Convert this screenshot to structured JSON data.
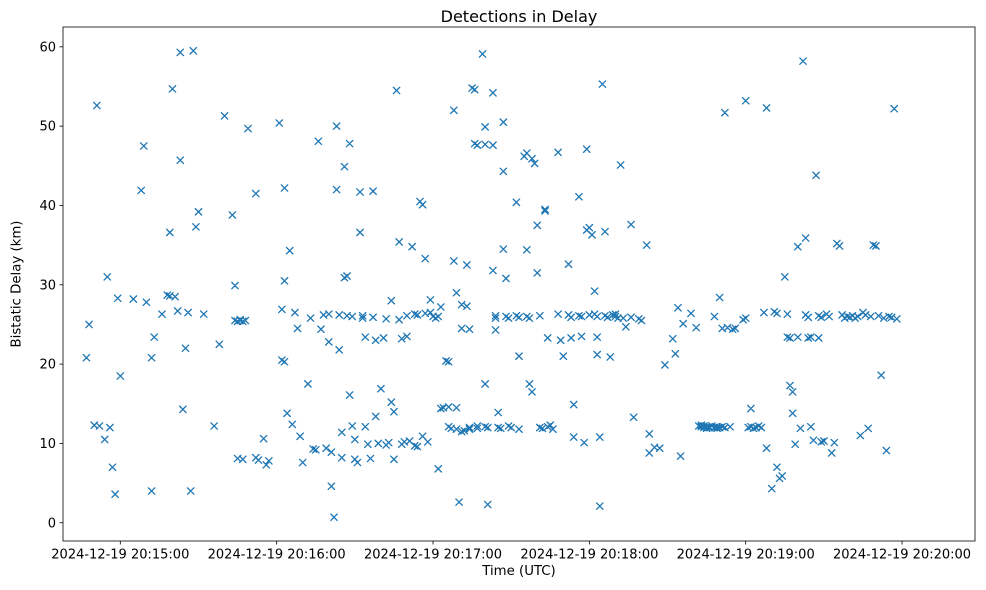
{
  "chart_data": {
    "type": "scatter",
    "title": "Detections in Delay",
    "xlabel": "Time (UTC)",
    "ylabel": "Bistatic Delay (km)",
    "marker": "x",
    "marker_color": "#1f77b4",
    "grid": false,
    "legend": "none",
    "x_unit": "seconds relative to 2024-12-19 20:15:00 UTC",
    "xlim": [
      -22,
      328
    ],
    "ylim": [
      -2.3,
      62.5
    ],
    "x_ticks": [
      {
        "value": 0,
        "label": "2024-12-19 20:15:00"
      },
      {
        "value": 60,
        "label": "2024-12-19 20:16:00"
      },
      {
        "value": 120,
        "label": "2024-12-19 20:17:00"
      },
      {
        "value": 180,
        "label": "2024-12-19 20:18:00"
      },
      {
        "value": 240,
        "label": "2024-12-19 20:19:00"
      },
      {
        "value": 300,
        "label": "2024-12-19 20:20:00"
      }
    ],
    "y_ticks": [
      {
        "value": 0,
        "label": "0"
      },
      {
        "value": 10,
        "label": "10"
      },
      {
        "value": 20,
        "label": "20"
      },
      {
        "value": 30,
        "label": "30"
      },
      {
        "value": 40,
        "label": "40"
      },
      {
        "value": 50,
        "label": "50"
      },
      {
        "value": 60,
        "label": "60"
      }
    ],
    "points": [
      [
        -13,
        20.8
      ],
      [
        -12,
        25.0
      ],
      [
        -10,
        12.3
      ],
      [
        -9,
        52.6
      ],
      [
        -8,
        12.2
      ],
      [
        -6,
        10.5
      ],
      [
        -5,
        31.0
      ],
      [
        -4,
        12.0
      ],
      [
        -3,
        7.0
      ],
      [
        -2,
        3.6
      ],
      [
        -1,
        28.3
      ],
      [
        0,
        18.5
      ],
      [
        5,
        28.2
      ],
      [
        8,
        41.9
      ],
      [
        9,
        47.5
      ],
      [
        10,
        27.8
      ],
      [
        12,
        20.8
      ],
      [
        12,
        4.0
      ],
      [
        13,
        23.4
      ],
      [
        16,
        26.3
      ],
      [
        18,
        28.7
      ],
      [
        19,
        28.6
      ],
      [
        19,
        36.6
      ],
      [
        20,
        54.7
      ],
      [
        21,
        28.5
      ],
      [
        22,
        26.7
      ],
      [
        23,
        45.7
      ],
      [
        23,
        59.3
      ],
      [
        24,
        14.3
      ],
      [
        25,
        22.0
      ],
      [
        26,
        26.5
      ],
      [
        27,
        4.0
      ],
      [
        28,
        59.5
      ],
      [
        29,
        37.3
      ],
      [
        30,
        39.2
      ],
      [
        32,
        26.3
      ],
      [
        36,
        12.2
      ],
      [
        38,
        22.5
      ],
      [
        40,
        51.3
      ],
      [
        43,
        38.8
      ],
      [
        44,
        29.9
      ],
      [
        44,
        25.5
      ],
      [
        45,
        25.4
      ],
      [
        45,
        8.1
      ],
      [
        46,
        25.6
      ],
      [
        46,
        25.5
      ],
      [
        47,
        25.4
      ],
      [
        47,
        8.0
      ],
      [
        48,
        25.5
      ],
      [
        49,
        49.7
      ],
      [
        52,
        41.5
      ],
      [
        52,
        8.2
      ],
      [
        53,
        7.9
      ],
      [
        55,
        10.6
      ],
      [
        56,
        7.3
      ],
      [
        57,
        7.8
      ],
      [
        61,
        50.4
      ],
      [
        62,
        26.9
      ],
      [
        62,
        20.5
      ],
      [
        63,
        42.2
      ],
      [
        63,
        30.5
      ],
      [
        63,
        20.3
      ],
      [
        64,
        13.8
      ],
      [
        65,
        34.3
      ],
      [
        66,
        12.4
      ],
      [
        67,
        26.5
      ],
      [
        68,
        24.5
      ],
      [
        69,
        10.9
      ],
      [
        70,
        7.6
      ],
      [
        72,
        17.5
      ],
      [
        73,
        25.8
      ],
      [
        74,
        9.3
      ],
      [
        75,
        9.2
      ],
      [
        76,
        48.1
      ],
      [
        77,
        24.4
      ],
      [
        78,
        26.2
      ],
      [
        79,
        9.4
      ],
      [
        80,
        26.3
      ],
      [
        80,
        22.8
      ],
      [
        81,
        8.9
      ],
      [
        81,
        4.6
      ],
      [
        82,
        0.7
      ],
      [
        83,
        50.0
      ],
      [
        83,
        42.0
      ],
      [
        84,
        26.2
      ],
      [
        84,
        21.8
      ],
      [
        85,
        11.4
      ],
      [
        85,
        8.2
      ],
      [
        86,
        44.9
      ],
      [
        86,
        30.9
      ],
      [
        87,
        31.1
      ],
      [
        87,
        26.1
      ],
      [
        88,
        47.8
      ],
      [
        88,
        16.1
      ],
      [
        89,
        26.0
      ],
      [
        89,
        12.2
      ],
      [
        90,
        10.5
      ],
      [
        90,
        8.0
      ],
      [
        91,
        7.6
      ],
      [
        92,
        41.7
      ],
      [
        92,
        36.6
      ],
      [
        93,
        26.1
      ],
      [
        93,
        25.8
      ],
      [
        94,
        23.4
      ],
      [
        94,
        12.1
      ],
      [
        95,
        9.9
      ],
      [
        96,
        8.1
      ],
      [
        97,
        41.8
      ],
      [
        97,
        25.9
      ],
      [
        98,
        23.0
      ],
      [
        98,
        13.4
      ],
      [
        99,
        10.0
      ],
      [
        100,
        16.9
      ],
      [
        101,
        23.3
      ],
      [
        102,
        25.7
      ],
      [
        102,
        9.8
      ],
      [
        103,
        10.1
      ],
      [
        104,
        28.0
      ],
      [
        104,
        15.2
      ],
      [
        105,
        14.0
      ],
      [
        105,
        8.0
      ],
      [
        106,
        54.5
      ],
      [
        107,
        35.4
      ],
      [
        107,
        25.6
      ],
      [
        108,
        23.2
      ],
      [
        108,
        9.9
      ],
      [
        109,
        10.2
      ],
      [
        110,
        26.1
      ],
      [
        110,
        23.5
      ],
      [
        111,
        10.3
      ],
      [
        112,
        34.8
      ],
      [
        113,
        26.3
      ],
      [
        113,
        9.7
      ],
      [
        114,
        26.2
      ],
      [
        114,
        9.6
      ],
      [
        115,
        40.5
      ],
      [
        116,
        40.1
      ],
      [
        116,
        10.9
      ],
      [
        117,
        33.3
      ],
      [
        117,
        26.4
      ],
      [
        118,
        10.2
      ],
      [
        119,
        26.5
      ],
      [
        119,
        28.1
      ],
      [
        120,
        26.0
      ],
      [
        121,
        25.8
      ],
      [
        122,
        6.8
      ],
      [
        122,
        26.0
      ],
      [
        123,
        27.2
      ],
      [
        123,
        14.4
      ],
      [
        124,
        14.5
      ],
      [
        125,
        20.4
      ],
      [
        126,
        20.3
      ],
      [
        126,
        14.6
      ],
      [
        126,
        12.1
      ],
      [
        127,
        11.9
      ],
      [
        128,
        52.0
      ],
      [
        128,
        33.0
      ],
      [
        129,
        29.0
      ],
      [
        129,
        14.5
      ],
      [
        129,
        11.8
      ],
      [
        130,
        2.6
      ],
      [
        131,
        27.5
      ],
      [
        131,
        24.5
      ],
      [
        131,
        11.5
      ],
      [
        132,
        11.6
      ],
      [
        133,
        32.5
      ],
      [
        133,
        27.3
      ],
      [
        134,
        24.4
      ],
      [
        134,
        12.0
      ],
      [
        134,
        11.8
      ],
      [
        135,
        54.8
      ],
      [
        136,
        54.6
      ],
      [
        136,
        47.8
      ],
      [
        137,
        47.6
      ],
      [
        137,
        12.2
      ],
      [
        137,
        11.9
      ],
      [
        139,
        59.1
      ],
      [
        140,
        49.9
      ],
      [
        140,
        47.7
      ],
      [
        140,
        17.5
      ],
      [
        140,
        12.1
      ],
      [
        141,
        12.0
      ],
      [
        141,
        2.3
      ],
      [
        143,
        54.2
      ],
      [
        143,
        47.6
      ],
      [
        143,
        31.8
      ],
      [
        144,
        26.1
      ],
      [
        144,
        25.8
      ],
      [
        144,
        24.3
      ],
      [
        145,
        13.9
      ],
      [
        145,
        12.0
      ],
      [
        146,
        11.9
      ],
      [
        147,
        50.5
      ],
      [
        147,
        44.3
      ],
      [
        147,
        34.5
      ],
      [
        148,
        30.8
      ],
      [
        148,
        26.0
      ],
      [
        149,
        25.8
      ],
      [
        149,
        12.2
      ],
      [
        150,
        12.0
      ],
      [
        152,
        40.4
      ],
      [
        152,
        26.1
      ],
      [
        153,
        25.9
      ],
      [
        153,
        21.0
      ],
      [
        153,
        11.8
      ],
      [
        155,
        46.2
      ],
      [
        156,
        46.6
      ],
      [
        156,
        34.4
      ],
      [
        156,
        26.0
      ],
      [
        157,
        25.8
      ],
      [
        157,
        17.5
      ],
      [
        158,
        16.5
      ],
      [
        158,
        45.9
      ],
      [
        159,
        45.3
      ],
      [
        160,
        37.5
      ],
      [
        160,
        31.5
      ],
      [
        161,
        26.1
      ],
      [
        161,
        12.0
      ],
      [
        162,
        11.9
      ],
      [
        163,
        39.5
      ],
      [
        163,
        39.3
      ],
      [
        164,
        23.3
      ],
      [
        164,
        12.1
      ],
      [
        165,
        12.3
      ],
      [
        166,
        11.8
      ],
      [
        168,
        46.7
      ],
      [
        168,
        26.3
      ],
      [
        169,
        23.0
      ],
      [
        170,
        21.0
      ],
      [
        172,
        32.6
      ],
      [
        172,
        26.2
      ],
      [
        173,
        25.9
      ],
      [
        173,
        23.3
      ],
      [
        174,
        14.9
      ],
      [
        174,
        10.8
      ],
      [
        176,
        41.1
      ],
      [
        176,
        26.1
      ],
      [
        177,
        26.0
      ],
      [
        177,
        23.5
      ],
      [
        178,
        10.1
      ],
      [
        179,
        47.1
      ],
      [
        179,
        36.9
      ],
      [
        180,
        37.2
      ],
      [
        180,
        26.2
      ],
      [
        181,
        36.3
      ],
      [
        182,
        29.2
      ],
      [
        182,
        26.3
      ],
      [
        183,
        26.0
      ],
      [
        183,
        23.4
      ],
      [
        183,
        21.2
      ],
      [
        184,
        10.8
      ],
      [
        184,
        2.1
      ],
      [
        185,
        55.3
      ],
      [
        186,
        36.7
      ],
      [
        186,
        26.1
      ],
      [
        187,
        25.9
      ],
      [
        188,
        20.9
      ],
      [
        189,
        26.2
      ],
      [
        190,
        26.0
      ],
      [
        190,
        26.3
      ],
      [
        191,
        25.8
      ],
      [
        192,
        45.1
      ],
      [
        193,
        25.8
      ],
      [
        194,
        24.7
      ],
      [
        196,
        37.6
      ],
      [
        196,
        25.9
      ],
      [
        197,
        13.3
      ],
      [
        199,
        25.7
      ],
      [
        200,
        25.5
      ],
      [
        202,
        35.0
      ],
      [
        203,
        11.2
      ],
      [
        203,
        8.8
      ],
      [
        205,
        9.5
      ],
      [
        207,
        9.4
      ],
      [
        209,
        19.9
      ],
      [
        212,
        23.2
      ],
      [
        213,
        21.3
      ],
      [
        214,
        27.1
      ],
      [
        215,
        8.4
      ],
      [
        216,
        25.1
      ],
      [
        219,
        26.4
      ],
      [
        221,
        24.6
      ],
      [
        222,
        12.2
      ],
      [
        223,
        12.1
      ],
      [
        223,
        12.3
      ],
      [
        224,
        12.0
      ],
      [
        224,
        12.2
      ],
      [
        225,
        12.1
      ],
      [
        225,
        11.9
      ],
      [
        226,
        12.1
      ],
      [
        226,
        12.0
      ],
      [
        227,
        12.2
      ],
      [
        228,
        26.0
      ],
      [
        228,
        12.0
      ],
      [
        229,
        12.1
      ],
      [
        229,
        11.9
      ],
      [
        230,
        28.4
      ],
      [
        230,
        12.0
      ],
      [
        231,
        24.5
      ],
      [
        231,
        12.1
      ],
      [
        232,
        51.7
      ],
      [
        232,
        12.0
      ],
      [
        233,
        24.6
      ],
      [
        234,
        12.1
      ],
      [
        235,
        24.4
      ],
      [
        236,
        24.5
      ],
      [
        239,
        25.6
      ],
      [
        240,
        53.2
      ],
      [
        240,
        25.8
      ],
      [
        241,
        12.0
      ],
      [
        242,
        14.4
      ],
      [
        242,
        12.1
      ],
      [
        243,
        11.9
      ],
      [
        244,
        12.0
      ],
      [
        245,
        12.2
      ],
      [
        246,
        12.0
      ],
      [
        247,
        26.5
      ],
      [
        248,
        52.3
      ],
      [
        248,
        9.4
      ],
      [
        250,
        4.3
      ],
      [
        251,
        26.6
      ],
      [
        252,
        26.4
      ],
      [
        252,
        7.0
      ],
      [
        253,
        5.6
      ],
      [
        254,
        5.9
      ],
      [
        255,
        31.0
      ],
      [
        256,
        26.3
      ],
      [
        256,
        23.4
      ],
      [
        257,
        23.3
      ],
      [
        257,
        17.3
      ],
      [
        258,
        16.5
      ],
      [
        258,
        13.8
      ],
      [
        259,
        9.9
      ],
      [
        260,
        34.8
      ],
      [
        260,
        23.4
      ],
      [
        261,
        11.9
      ],
      [
        262,
        58.2
      ],
      [
        263,
        35.9
      ],
      [
        263,
        26.2
      ],
      [
        264,
        25.9
      ],
      [
        264,
        23.3
      ],
      [
        265,
        23.4
      ],
      [
        265,
        12.1
      ],
      [
        266,
        10.4
      ],
      [
        267,
        43.8
      ],
      [
        268,
        26.1
      ],
      [
        268,
        23.3
      ],
      [
        269,
        25.9
      ],
      [
        269,
        10.2
      ],
      [
        270,
        10.3
      ],
      [
        271,
        26.3
      ],
      [
        272,
        26.0
      ],
      [
        273,
        8.8
      ],
      [
        274,
        10.1
      ],
      [
        275,
        35.2
      ],
      [
        276,
        34.9
      ],
      [
        277,
        26.2
      ],
      [
        278,
        25.8
      ],
      [
        279,
        26.0
      ],
      [
        280,
        25.9
      ],
      [
        281,
        26.1
      ],
      [
        282,
        25.8
      ],
      [
        283,
        26.0
      ],
      [
        284,
        11.0
      ],
      [
        285,
        26.5
      ],
      [
        286,
        26.2
      ],
      [
        287,
        11.9
      ],
      [
        288,
        26.0
      ],
      [
        289,
        35.0
      ],
      [
        290,
        34.9
      ],
      [
        291,
        26.1
      ],
      [
        292,
        18.6
      ],
      [
        293,
        25.8
      ],
      [
        294,
        9.1
      ],
      [
        295,
        26.0
      ],
      [
        296,
        25.9
      ],
      [
        297,
        52.2
      ],
      [
        298,
        25.7
      ]
    ]
  }
}
